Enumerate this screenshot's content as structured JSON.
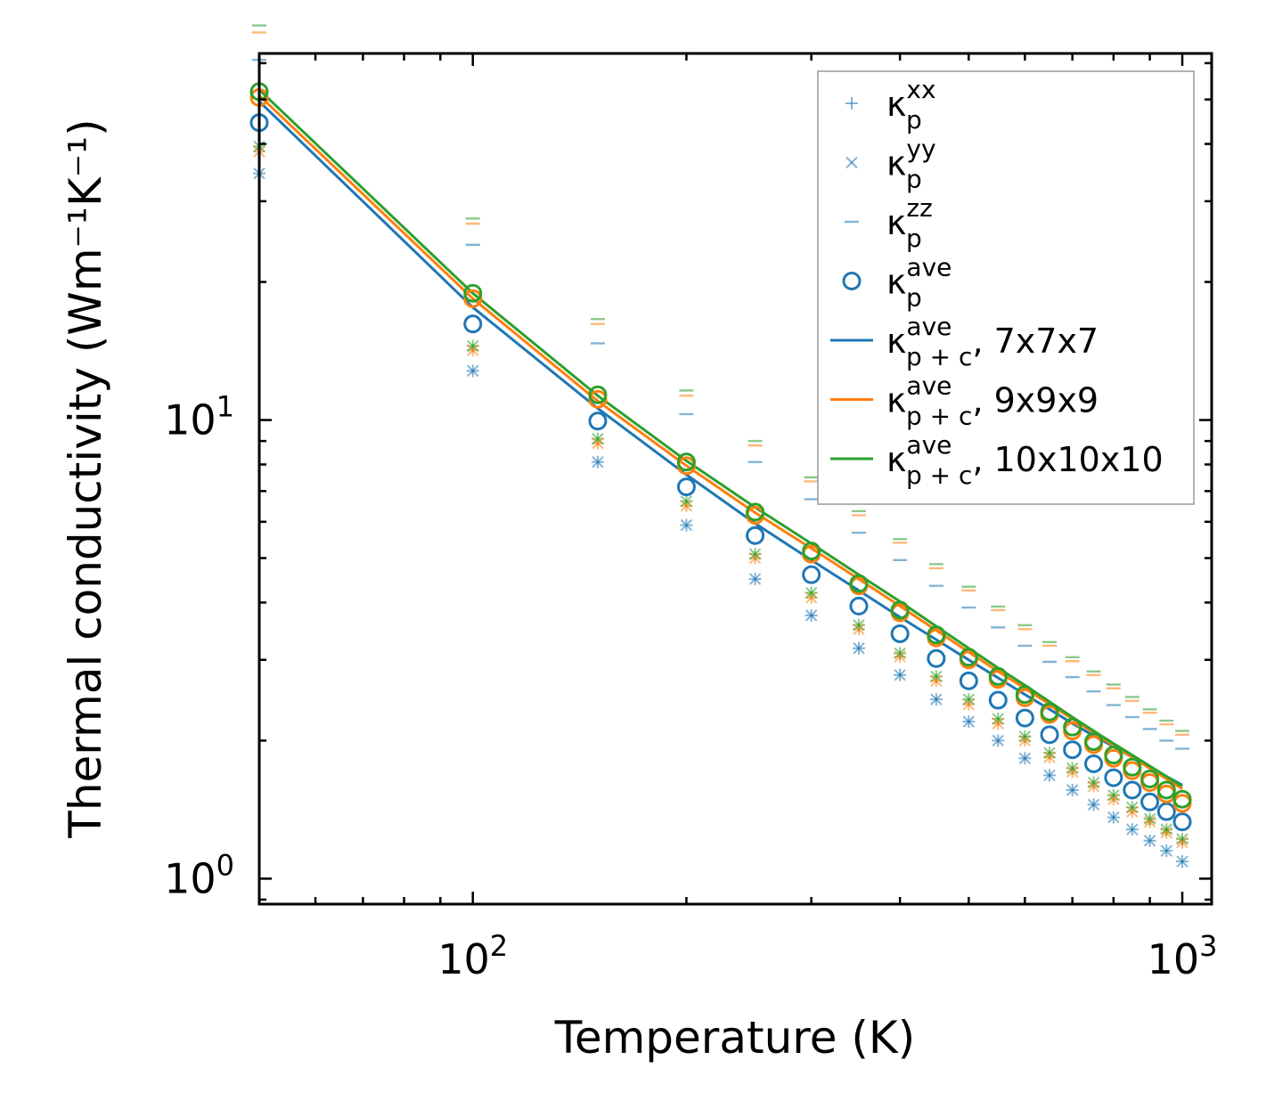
{
  "chart_data": {
    "type": "scatter",
    "xscale": "log",
    "yscale": "log",
    "xlim": [
      50,
      1100
    ],
    "ylim": [
      0.88,
      63
    ],
    "xlabel": "Temperature (K)",
    "ylabel": "Thermal conductivity (Wm⁻¹K⁻¹)",
    "x_ticks": [
      {
        "value": 100,
        "base": "10",
        "exp": "2"
      },
      {
        "value": 1000,
        "base": "10",
        "exp": "3"
      }
    ],
    "y_ticks": [
      {
        "value": 1,
        "base": "10",
        "exp": "0"
      },
      {
        "value": 10,
        "base": "10",
        "exp": "1"
      }
    ],
    "temperatures": [
      50,
      100,
      150,
      200,
      250,
      300,
      350,
      400,
      450,
      500,
      550,
      600,
      650,
      700,
      750,
      800,
      850,
      900,
      950,
      1000
    ],
    "markers": {
      "xx": {
        "7x7x7": [
          34.5,
          12.8,
          8.1,
          5.9,
          4.5,
          3.75,
          3.18,
          2.78,
          2.46,
          2.2,
          2.0,
          1.83,
          1.68,
          1.56,
          1.45,
          1.36,
          1.28,
          1.21,
          1.15,
          1.09
        ],
        "9x9x9": [
          38.5,
          14.2,
          8.9,
          6.5,
          5.0,
          4.1,
          3.5,
          3.05,
          2.7,
          2.4,
          2.18,
          2.0,
          1.84,
          1.71,
          1.59,
          1.49,
          1.4,
          1.33,
          1.26,
          1.2
        ],
        "10x10x10": [
          39.5,
          14.5,
          9.1,
          6.65,
          5.1,
          4.2,
          3.57,
          3.1,
          2.76,
          2.46,
          2.23,
          2.04,
          1.88,
          1.74,
          1.62,
          1.52,
          1.43,
          1.35,
          1.28,
          1.22
        ]
      },
      "yy": {
        "7x7x7": [
          34.5,
          12.8,
          8.1,
          5.9,
          4.5,
          3.75,
          3.18,
          2.78,
          2.46,
          2.2,
          2.0,
          1.83,
          1.68,
          1.56,
          1.45,
          1.36,
          1.28,
          1.21,
          1.15,
          1.09
        ],
        "9x9x9": [
          38.5,
          14.2,
          8.9,
          6.5,
          5.0,
          4.1,
          3.5,
          3.05,
          2.7,
          2.4,
          2.18,
          2.0,
          1.84,
          1.71,
          1.59,
          1.49,
          1.4,
          1.33,
          1.26,
          1.2
        ],
        "10x10x10": [
          39.5,
          14.5,
          9.1,
          6.65,
          5.1,
          4.2,
          3.57,
          3.1,
          2.76,
          2.46,
          2.23,
          2.04,
          1.88,
          1.74,
          1.62,
          1.52,
          1.43,
          1.35,
          1.28,
          1.22
        ]
      },
      "zz": {
        "7x7x7": [
          61,
          24.1,
          14.7,
          10.3,
          8.1,
          6.72,
          5.68,
          4.95,
          4.35,
          3.9,
          3.53,
          3.22,
          2.97,
          2.75,
          2.56,
          2.39,
          2.25,
          2.12,
          2.0,
          1.92
        ],
        "9x9x9": [
          70,
          26.8,
          16.2,
          11.3,
          8.8,
          7.35,
          6.2,
          5.4,
          4.75,
          4.25,
          3.85,
          3.5,
          3.22,
          2.98,
          2.78,
          2.6,
          2.44,
          2.3,
          2.17,
          2.06
        ],
        "10x10x10": [
          72.5,
          27.5,
          16.6,
          11.6,
          9.0,
          7.5,
          6.33,
          5.5,
          4.85,
          4.33,
          3.92,
          3.57,
          3.28,
          3.04,
          2.83,
          2.65,
          2.49,
          2.34,
          2.21,
          2.1
        ]
      },
      "ave": {
        "7x7x7": [
          44.5,
          16.2,
          9.95,
          7.15,
          5.6,
          4.6,
          3.93,
          3.42,
          3.02,
          2.7,
          2.45,
          2.24,
          2.06,
          1.91,
          1.78,
          1.66,
          1.56,
          1.47,
          1.4,
          1.33
        ],
        "9x9x9": [
          50.5,
          18.4,
          11.1,
          7.95,
          6.2,
          5.1,
          4.35,
          3.8,
          3.35,
          3.0,
          2.72,
          2.48,
          2.28,
          2.1,
          1.96,
          1.83,
          1.72,
          1.62,
          1.53,
          1.46
        ],
        "10x10x10": [
          52,
          18.9,
          11.35,
          8.1,
          6.3,
          5.18,
          4.4,
          3.85,
          3.4,
          3.04,
          2.76,
          2.52,
          2.31,
          2.14,
          1.99,
          1.86,
          1.75,
          1.65,
          1.56,
          1.49
        ]
      }
    },
    "series": [
      {
        "name": "7x7x7",
        "color": "#1f77b4",
        "values": [
          49.5,
          17.6,
          10.6,
          7.6,
          5.95,
          4.95,
          4.25,
          3.72,
          3.32,
          3.0,
          2.74,
          2.52,
          2.34,
          2.18,
          2.05,
          1.94,
          1.84,
          1.75,
          1.67,
          1.6
        ]
      },
      {
        "name": "9x9x9",
        "color": "#ff7f0e",
        "values": [
          51,
          18.4,
          11.0,
          7.95,
          6.28,
          5.25,
          4.5,
          3.93,
          3.48,
          3.12,
          2.83,
          2.6,
          2.4,
          2.23,
          2.08,
          1.95,
          1.84,
          1.74,
          1.65,
          1.57
        ]
      },
      {
        "name": "10x10x10",
        "color": "#2ca02c",
        "values": [
          52.5,
          18.9,
          11.3,
          8.15,
          6.45,
          5.38,
          4.6,
          4.02,
          3.55,
          3.18,
          2.88,
          2.64,
          2.43,
          2.25,
          2.1,
          1.97,
          1.86,
          1.76,
          1.67,
          1.59
        ]
      }
    ],
    "legend": {
      "position": "top-right",
      "entries": [
        {
          "symbol": "+",
          "base": "κ",
          "sub": "p",
          "sup": "xx",
          "suffix": "",
          "color": "#1f77b4"
        },
        {
          "symbol": "×",
          "base": "κ",
          "sub": "p",
          "sup": "yy",
          "suffix": "",
          "color": "#1f77b4"
        },
        {
          "symbol": "–",
          "base": "κ",
          "sub": "p",
          "sup": "zz",
          "suffix": "",
          "color": "#1f77b4"
        },
        {
          "symbol": "o",
          "base": "κ",
          "sub": "p",
          "sup": "ave",
          "suffix": "",
          "color": "#1f77b4"
        },
        {
          "symbol": "line",
          "base": "κ",
          "sub": "p + c",
          "sup": "ave",
          "suffix": ", 7x7x7",
          "color": "#1f77b4"
        },
        {
          "symbol": "line",
          "base": "κ",
          "sub": "p + c",
          "sup": "ave",
          "suffix": ", 9x9x9",
          "color": "#ff7f0e"
        },
        {
          "symbol": "line",
          "base": "κ",
          "sub": "p + c",
          "sup": "ave",
          "suffix": ", 10x10x10",
          "color": "#2ca02c"
        }
      ]
    }
  }
}
